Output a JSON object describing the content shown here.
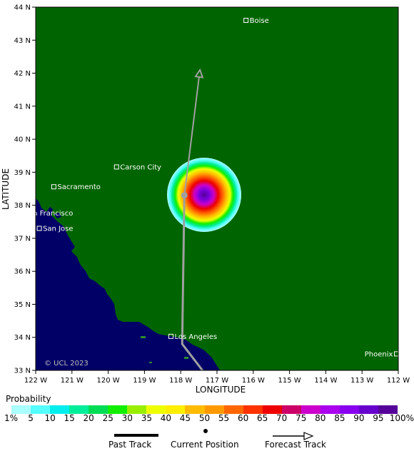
{
  "map": {
    "lat_range": [
      33,
      44
    ],
    "lon_range": [
      -122,
      -112
    ],
    "lat_ticks": [
      "33 N",
      "34 N",
      "35 N",
      "36 N",
      "37 N",
      "38 N",
      "39 N",
      "40 N",
      "41 N",
      "42 N",
      "43 N",
      "44 N"
    ],
    "lon_ticks": [
      "122 W",
      "121 W",
      "120 W",
      "119 W",
      "118 W",
      "117 W",
      "116 W",
      "115 W",
      "114 W",
      "113 W",
      "112 W"
    ],
    "xlabel": "LONGITUDE",
    "ylabel": "LATITUDE",
    "copyright": "© UCL 2023",
    "colors": {
      "land": "#006400",
      "ocean": "#000066",
      "track": "#a0a0a0"
    }
  },
  "cities": [
    {
      "name": "Boise",
      "lat": 43.6,
      "lon": -116.2
    },
    {
      "name": "Carson City",
      "lat": 39.16,
      "lon": -119.77
    },
    {
      "name": "Sacramento",
      "lat": 38.56,
      "lon": -121.5
    },
    {
      "name": "San Francisco",
      "lat": 37.77,
      "lon": -122.42
    },
    {
      "name": "San Jose",
      "lat": 37.3,
      "lon": -121.9
    },
    {
      "name": "Los Angeles",
      "lat": 34.03,
      "lon": -118.27
    },
    {
      "name": "Phoenix",
      "lat": 33.5,
      "lon": -112.05
    }
  ],
  "storm": {
    "current_position": {
      "lat": 38.3,
      "lon": -117.9
    },
    "past_track": [
      [
        33.0,
        -117.4
      ],
      [
        33.8,
        -117.96
      ],
      [
        38.3,
        -117.9
      ]
    ],
    "forecast_track": [
      [
        38.3,
        -117.9
      ],
      [
        42.1,
        -117.47
      ]
    ]
  },
  "legend": {
    "title": "Probability",
    "ticks": [
      "1%",
      "5",
      "10",
      "15",
      "20",
      "25",
      "30",
      "35",
      "40",
      "45",
      "50",
      "55",
      "60",
      "65",
      "70",
      "75",
      "80",
      "85",
      "90",
      "95",
      "100%"
    ],
    "colors": [
      "#aaffff",
      "#55ffff",
      "#00eeee",
      "#00ee99",
      "#00dd55",
      "#11ee00",
      "#99ee00",
      "#eeff00",
      "#ffee00",
      "#ffbb00",
      "#ff9900",
      "#ff6600",
      "#ff3300",
      "#ee0000",
      "#cc0066",
      "#cc00cc",
      "#aa00ee",
      "#8800ee",
      "#6600cc",
      "#550099"
    ]
  },
  "key": {
    "past_track": "Past Track",
    "current_position": "Current Position",
    "forecast_track": "Forecast Track"
  }
}
